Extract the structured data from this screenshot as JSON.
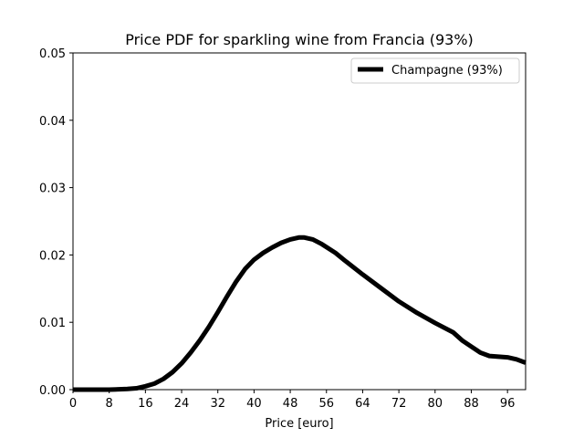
{
  "chart_data": {
    "type": "line",
    "title": "Price PDF for sparkling wine from Francia (93%)",
    "xlabel": "Price [euro]",
    "ylabel": "",
    "xlim": [
      0,
      100
    ],
    "ylim": [
      0,
      0.05
    ],
    "xticks": [
      0,
      8,
      16,
      24,
      32,
      40,
      48,
      56,
      64,
      72,
      80,
      88,
      96
    ],
    "yticks": [
      "0.00",
      "0.01",
      "0.02",
      "0.03",
      "0.04",
      "0.05"
    ],
    "grid": false,
    "legend_position": "top-right",
    "series": [
      {
        "name": "Champagne (93%)",
        "color": "#000000",
        "x": [
          0,
          4,
          8,
          12,
          14,
          16,
          18,
          20,
          22,
          24,
          26,
          28,
          30,
          32,
          34,
          36,
          38,
          40,
          42,
          44,
          46,
          48,
          50,
          51,
          53,
          55,
          58,
          60,
          64,
          68,
          72,
          76,
          80,
          84,
          86,
          88,
          90,
          92,
          96,
          98,
          100
        ],
        "y": [
          0.0,
          0.0,
          0.0,
          0.0001,
          0.0002,
          0.0005,
          0.0009,
          0.0016,
          0.0026,
          0.0039,
          0.0055,
          0.0073,
          0.0093,
          0.0115,
          0.0138,
          0.016,
          0.0179,
          0.0193,
          0.0203,
          0.0211,
          0.0218,
          0.0223,
          0.0226,
          0.0226,
          0.0223,
          0.0216,
          0.0203,
          0.0192,
          0.0171,
          0.0151,
          0.0131,
          0.0114,
          0.0099,
          0.0085,
          0.0073,
          0.0064,
          0.0055,
          0.005,
          0.0048,
          0.0045,
          0.004
        ]
      }
    ]
  }
}
